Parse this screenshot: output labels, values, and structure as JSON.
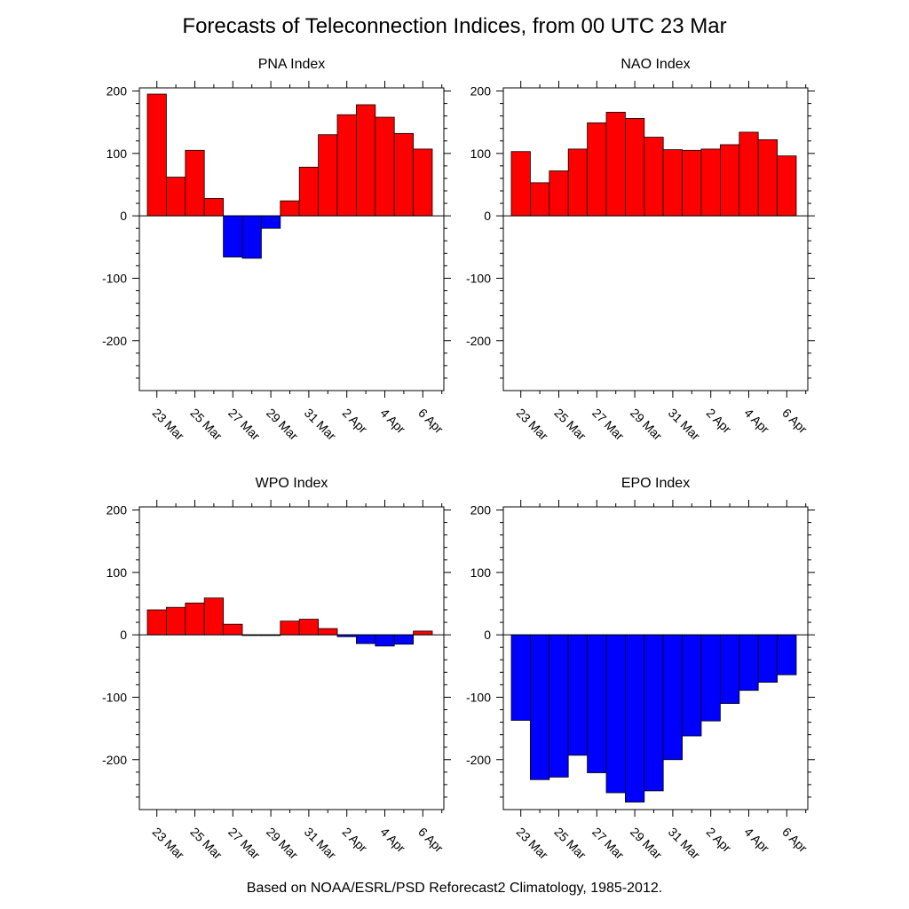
{
  "title": "Forecasts of Teleconnection Indices, from 00 UTC 23 Mar",
  "footer": "Based on NOAA/ESRL/PSD Reforecast2 Climatology, 1985-2012.",
  "colors": {
    "positive": "#ff0000",
    "negative": "#0000ff",
    "outline": "#000000"
  },
  "chart_data": [
    {
      "type": "bar",
      "title": "PNA Index",
      "xlabel": "",
      "ylabel": "",
      "ylim": [
        -280,
        205
      ],
      "yticks": [
        200,
        100,
        0,
        -100,
        -200
      ],
      "tick_labels": [
        "23 Mar",
        "25 Mar",
        "27 Mar",
        "29 Mar",
        "31 Mar",
        "2 Apr",
        "4 Apr",
        "6 Apr"
      ],
      "values": [
        195,
        62,
        105,
        28,
        -66,
        -68,
        -20,
        24,
        78,
        130,
        162,
        178,
        158,
        132,
        107
      ]
    },
    {
      "type": "bar",
      "title": "NAO Index",
      "xlabel": "",
      "ylabel": "",
      "ylim": [
        -280,
        205
      ],
      "yticks": [
        200,
        100,
        0,
        -100,
        -200
      ],
      "tick_labels": [
        "23 Mar",
        "25 Mar",
        "27 Mar",
        "29 Mar",
        "31 Mar",
        "2 Apr",
        "4 Apr",
        "6 Apr"
      ],
      "values": [
        103,
        53,
        72,
        107,
        149,
        166,
        156,
        126,
        106,
        105,
        107,
        114,
        134,
        122,
        96
      ]
    },
    {
      "type": "bar",
      "title": "WPO Index",
      "xlabel": "",
      "ylabel": "",
      "ylim": [
        -280,
        205
      ],
      "yticks": [
        200,
        100,
        0,
        -100,
        -200
      ],
      "tick_labels": [
        "23 Mar",
        "25 Mar",
        "27 Mar",
        "29 Mar",
        "31 Mar",
        "2 Apr",
        "4 Apr",
        "6 Apr"
      ],
      "values": [
        40,
        44,
        51,
        59,
        17,
        -1,
        -1,
        22,
        25,
        10,
        -3,
        -14,
        -18,
        -15,
        6
      ]
    },
    {
      "type": "bar",
      "title": "EPO Index",
      "xlabel": "",
      "ylabel": "",
      "ylim": [
        -280,
        205
      ],
      "yticks": [
        200,
        100,
        0,
        -100,
        -200
      ],
      "tick_labels": [
        "23 Mar",
        "25 Mar",
        "27 Mar",
        "29 Mar",
        "31 Mar",
        "2 Apr",
        "4 Apr",
        "6 Apr"
      ],
      "values": [
        -137,
        -232,
        -228,
        -193,
        -221,
        -253,
        -268,
        -250,
        -200,
        -162,
        -138,
        -110,
        -89,
        -76,
        -64
      ]
    }
  ]
}
